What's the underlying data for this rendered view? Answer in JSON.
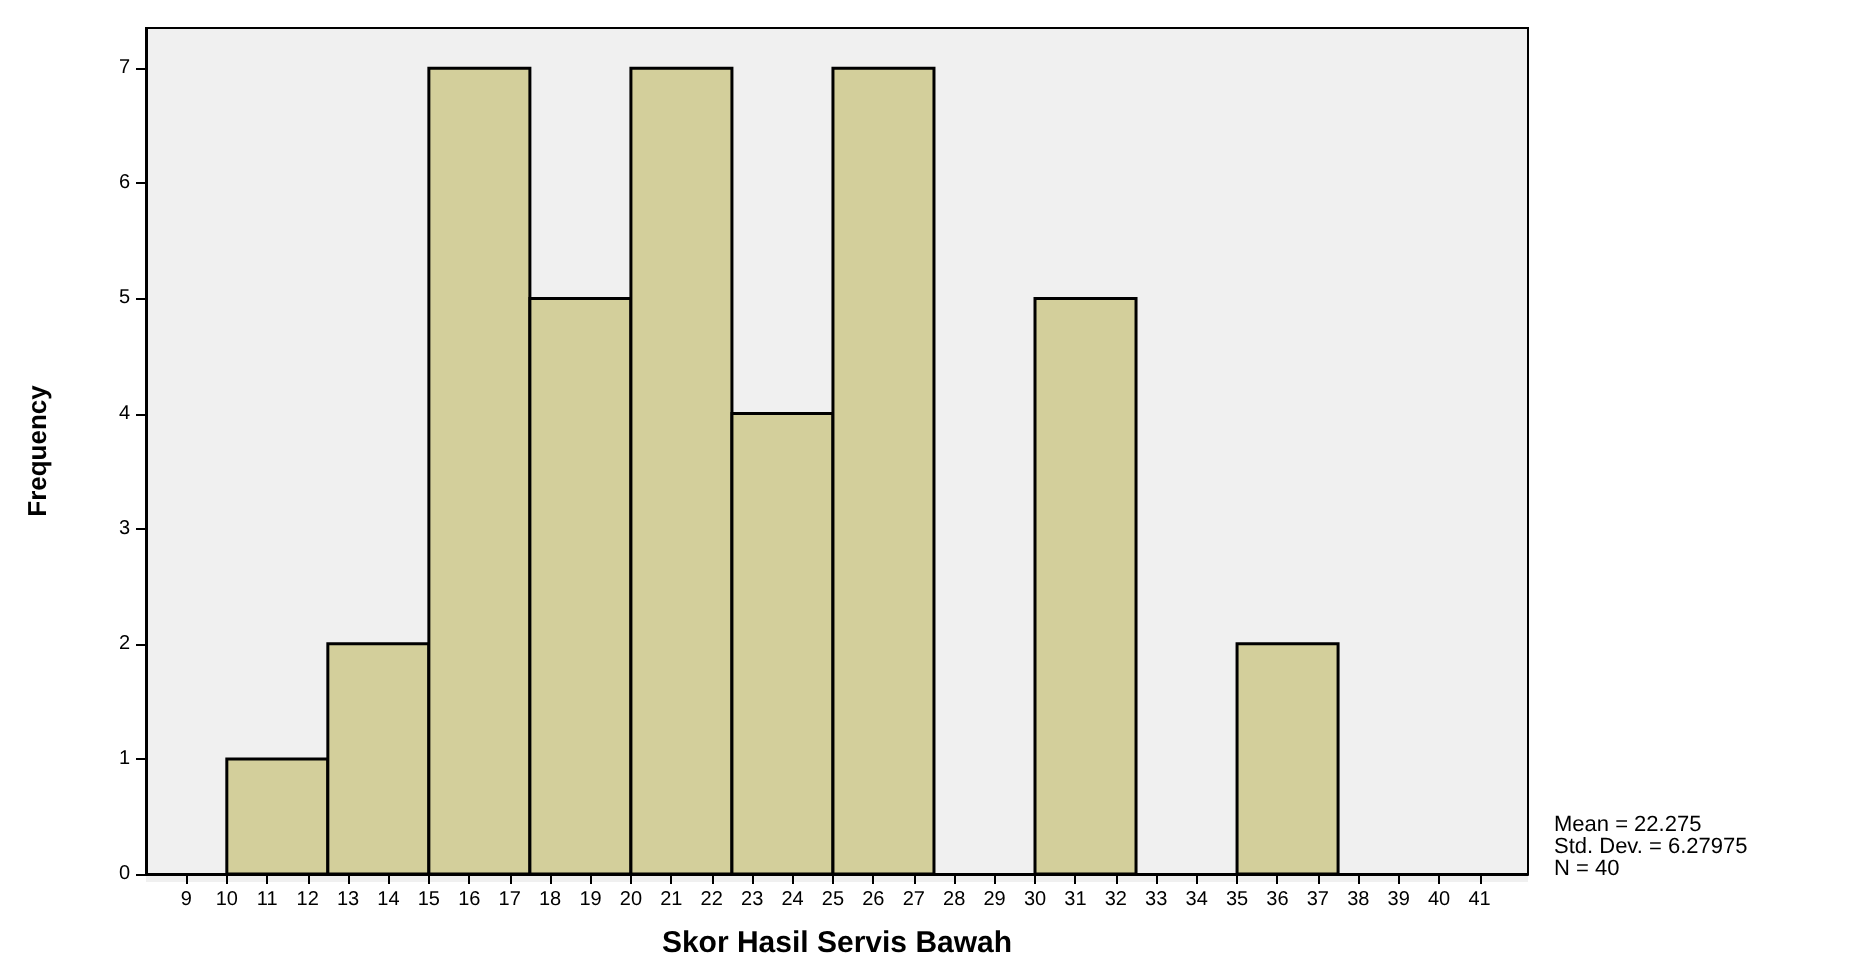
{
  "chart_data": {
    "type": "histogram",
    "xlabel": "Skor Hasil Servis Bawah",
    "ylabel": "Frequency",
    "bins": [
      10,
      12.5,
      15,
      17.5,
      20,
      22.5,
      25,
      27.5,
      30,
      32.5,
      35,
      37.5
    ],
    "values": [
      1,
      2,
      7,
      5,
      7,
      4,
      7,
      0,
      5,
      0,
      2
    ],
    "color": "#d3cf9b",
    "xlim": [
      8,
      42.2
    ],
    "xticks": [
      9,
      10,
      11,
      12,
      13,
      14,
      15,
      16,
      17,
      18,
      19,
      20,
      21,
      22,
      23,
      24,
      25,
      26,
      27,
      28,
      29,
      30,
      31,
      32,
      33,
      34,
      35,
      36,
      37,
      38,
      39,
      40,
      41
    ],
    "ylim": [
      0,
      7.35
    ],
    "yticks": [
      0,
      1,
      2,
      3,
      4,
      5,
      6,
      7
    ],
    "grid": false,
    "annotations": [
      "Mean = 22.275",
      "Std. Dev. = 6.27975",
      "N = 40"
    ]
  }
}
